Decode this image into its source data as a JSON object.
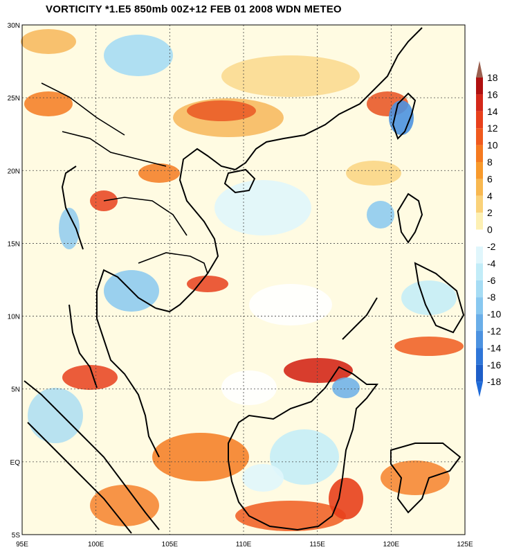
{
  "title": "VORTICITY *1.E5 850mb 00Z+12 FEB 01 2008 WDN METEO",
  "map": {
    "lat_labels": [
      "30N",
      "25N",
      "20N",
      "15N",
      "10N",
      "5N",
      "EQ",
      "5S"
    ],
    "lon_labels": [
      "95E",
      "100E",
      "105E",
      "110E",
      "115E",
      "120E",
      "125E"
    ],
    "lat_values": [
      30,
      25,
      20,
      15,
      10,
      5,
      0,
      -5
    ],
    "lon_values": [
      95,
      100,
      105,
      110,
      115,
      120,
      125
    ],
    "lon_range": [
      95,
      125
    ],
    "lat_range": [
      -5,
      30
    ],
    "grid": "dotted"
  },
  "colorbar": {
    "labels": [
      "18",
      "16",
      "14",
      "12",
      "10",
      "8",
      "6",
      "4",
      "2",
      "0",
      "-2",
      "-4",
      "-6",
      "-8",
      "-10",
      "-12",
      "-14",
      "-16",
      "-18"
    ],
    "pos_colors": [
      "#b01010",
      "#d4281a",
      "#e8401c",
      "#f05a1e",
      "#f57a20",
      "#f89a2c",
      "#f8b850",
      "#fad27a",
      "#fdf0b4"
    ],
    "neg_colors": [
      "#e0f6fc",
      "#c2ecf8",
      "#a6dcf4",
      "#88c8f0",
      "#6aaee8",
      "#4c92e0",
      "#2f76d8",
      "#1e5ec8"
    ],
    "top_arrow_color": "#9a6050",
    "bottom_arrow_color": "#1e6ad8"
  }
}
